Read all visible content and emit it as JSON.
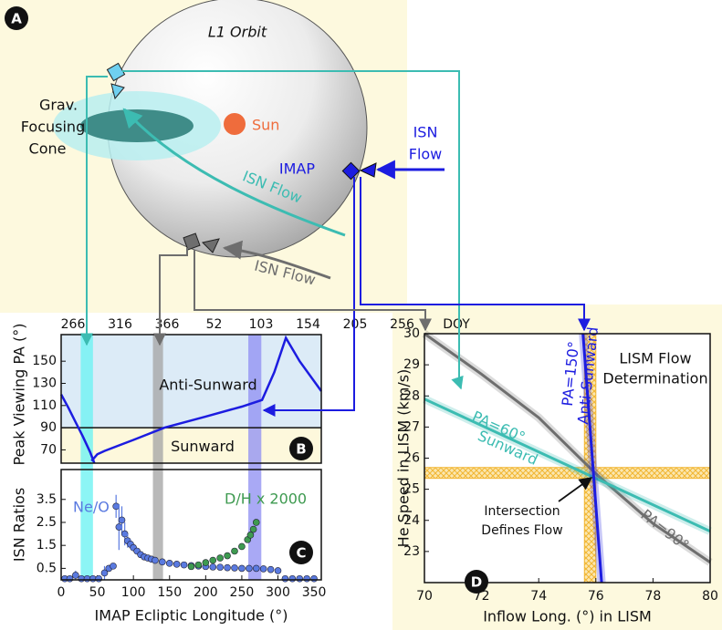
{
  "diagram": {
    "panel_label": "A",
    "orbit_label": "L1 Orbit",
    "sun_label": "Sun",
    "cone_label": [
      "Grav.",
      "Focusing",
      "Cone"
    ],
    "imap_label": "IMAP",
    "flow_label_right": [
      "ISN",
      "Flow"
    ],
    "flow_label_middle": "ISN Flow",
    "flow_label_bottom": "ISN Flow"
  },
  "chart_data": [
    {
      "type": "line",
      "panel_label": "B",
      "ylabel": "Peak Viewing PA (°)",
      "xlim": [
        0,
        360
      ],
      "ylim": [
        58,
        174
      ],
      "yticks": [
        70,
        90,
        110,
        130,
        150
      ],
      "x2ticks": [
        266,
        316,
        366,
        52,
        103,
        154,
        205,
        256
      ],
      "x2label": "DOY",
      "divider": 90,
      "regions": [
        "Anti-Sunward",
        "Sunward"
      ],
      "bands": [
        {
          "xlim": [
            27,
            44
          ],
          "color": "#6ff2f2"
        },
        {
          "xlim": [
            127,
            141
          ],
          "color": "#a8a8a8"
        },
        {
          "xlim": [
            259,
            277
          ],
          "color": "#9494f2"
        }
      ],
      "series": [
        {
          "color": "#1c1ce0",
          "x": [
            0,
            10,
            20,
            30,
            40,
            46
          ],
          "values": [
            120,
            108,
            95,
            82,
            68,
            58
          ]
        },
        {
          "color": "#1c1ce0",
          "x": [
            42,
            50,
            60,
            100,
            143,
            200,
            250,
            278,
            295,
            311,
            330,
            360
          ],
          "values": [
            60,
            66,
            69,
            79,
            90,
            100,
            109,
            115,
            140,
            171,
            150,
            123
          ]
        }
      ]
    },
    {
      "type": "scatter",
      "panel_label": "C",
      "xlabel": "IMAP Ecliptic Longitude (°)",
      "ylabel": "ISN Ratios",
      "xlim": [
        0,
        360
      ],
      "ylim": [
        0,
        4.8
      ],
      "xticks": [
        0,
        50,
        100,
        150,
        200,
        250,
        300,
        350
      ],
      "yticks": [
        0.5,
        1.5,
        2.5,
        3.5
      ],
      "series": [
        {
          "name": "Ne/O",
          "color": "#5a7ae0",
          "x": [
            5,
            12,
            20,
            28,
            36,
            44,
            52,
            60,
            66,
            72,
            76,
            80,
            84,
            88,
            92,
            96,
            100,
            105,
            110,
            115,
            120,
            125,
            130,
            140,
            150,
            160,
            170,
            180,
            190,
            200,
            210,
            220,
            230,
            240,
            250,
            260,
            270,
            280,
            290,
            300,
            310,
            320,
            330,
            340,
            350
          ],
          "values": [
            0.05,
            0.05,
            0.2,
            0.05,
            0.05,
            0.05,
            0.05,
            0.3,
            0.5,
            0.6,
            3.2,
            2.3,
            2.6,
            2.0,
            1.7,
            1.55,
            1.4,
            1.25,
            1.1,
            1.0,
            0.95,
            0.9,
            0.85,
            0.78,
            0.72,
            0.68,
            0.65,
            0.62,
            0.6,
            0.58,
            0.56,
            0.55,
            0.53,
            0.52,
            0.5,
            0.5,
            0.5,
            0.48,
            0.45,
            0.4,
            0.05,
            0.05,
            0.05,
            0.05,
            0.05
          ],
          "errors": [
            null,
            null,
            0.2,
            null,
            null,
            null,
            null,
            0.3,
            null,
            null,
            0.5,
            1.0,
            0.6,
            0.5,
            0.3,
            0.2,
            null,
            null,
            null,
            null,
            null,
            null,
            null,
            null,
            null,
            null,
            null,
            null,
            null,
            null,
            null,
            null,
            null,
            null,
            null,
            null,
            null,
            null,
            null,
            null,
            null,
            null,
            null,
            null,
            null
          ]
        },
        {
          "name": "D/H x 2000",
          "color": "#3e9a50",
          "x": [
            180,
            190,
            200,
            210,
            220,
            230,
            240,
            250,
            258,
            262,
            266,
            270
          ],
          "values": [
            0.58,
            0.65,
            0.75,
            0.85,
            0.95,
            1.05,
            1.25,
            1.45,
            1.75,
            1.95,
            2.2,
            2.5
          ]
        }
      ]
    },
    {
      "type": "line",
      "panel_label": "D",
      "title": [
        "LISM Flow",
        "Determination"
      ],
      "xlabel": "Inflow Long. (°) in LISM",
      "ylabel": "He Speed in LISM (km/s)",
      "xlim": [
        70,
        80
      ],
      "ylim": [
        22,
        30
      ],
      "xticks": [
        70,
        72,
        74,
        76,
        78,
        80
      ],
      "yticks": [
        23,
        24,
        25,
        26,
        27,
        28,
        29,
        30
      ],
      "bands": {
        "x": [
          75.6,
          76.0
        ],
        "y": [
          25.35,
          25.7
        ],
        "color": "#f2b632"
      },
      "series": [
        {
          "name": "PA=90°",
          "color": "#6e6e6e",
          "x": [
            70,
            72,
            74,
            76,
            78,
            80
          ],
          "values": [
            30,
            28.7,
            27.3,
            25.5,
            23.9,
            22.65
          ]
        },
        {
          "name": "PA=60°",
          "direction": "Sunward",
          "color": "#3cbcb2",
          "x": [
            70,
            80
          ],
          "values": [
            27.9,
            23.65
          ]
        },
        {
          "name": "PA=150°",
          "direction": "Anti-Sunward",
          "color": "#1c1ce0",
          "x": [
            75.55,
            76.2
          ],
          "values": [
            30,
            22
          ]
        }
      ],
      "intersection_label": [
        "Intersection",
        "Defines Flow"
      ]
    }
  ]
}
